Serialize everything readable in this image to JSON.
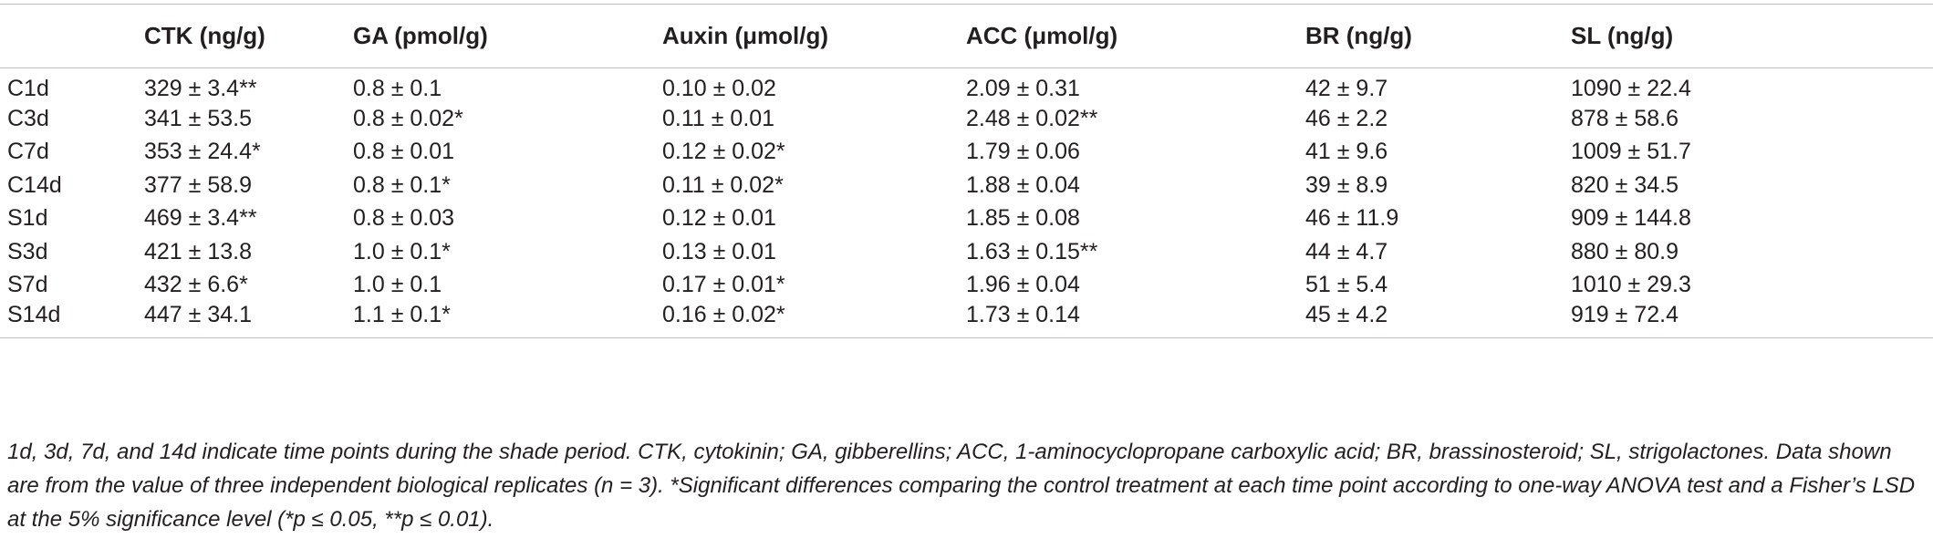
{
  "table": {
    "headers": [
      "",
      "CTK (ng/g)",
      "GA (pmol/g)",
      "Auxin (μmol/g)",
      "ACC (μmol/g)",
      "BR (ng/g)",
      "SL (ng/g)"
    ],
    "rows": [
      [
        "C1d",
        "329 ± 3.4**",
        "0.8 ± 0.1",
        "0.10 ± 0.02",
        "2.09 ± 0.31",
        "42 ± 9.7",
        "1090 ± 22.4"
      ],
      [
        "C3d",
        "341 ± 53.5",
        "0.8 ± 0.02*",
        "0.11 ± 0.01",
        "2.48 ± 0.02**",
        "46 ± 2.2",
        "878 ± 58.6"
      ],
      [
        "C7d",
        "353 ± 24.4*",
        "0.8 ± 0.01",
        "0.12 ± 0.02*",
        "1.79 ± 0.06",
        "41 ± 9.6",
        "1009 ± 51.7"
      ],
      [
        "C14d",
        "377 ± 58.9",
        "0.8 ± 0.1*",
        "0.11 ± 0.02*",
        "1.88 ± 0.04",
        "39 ± 8.9",
        "820 ± 34.5"
      ],
      [
        "S1d",
        "469 ± 3.4**",
        "0.8 ± 0.03",
        "0.12 ± 0.01",
        "1.85 ± 0.08",
        "46 ± 11.9",
        "909 ± 144.8"
      ],
      [
        "S3d",
        "421 ± 13.8",
        "1.0 ± 0.1*",
        "0.13 ± 0.01",
        "1.63 ± 0.15**",
        "44 ± 4.7",
        "880 ± 80.9"
      ],
      [
        "S7d",
        "432 ± 6.6*",
        "1.0 ± 0.1",
        "0.17 ± 0.01*",
        "1.96 ± 0.04",
        "51 ± 5.4",
        "1010 ± 29.3"
      ],
      [
        "S14d",
        "447 ± 34.1",
        "1.1 ± 0.1*",
        "0.16 ± 0.02*",
        "1.73 ± 0.14",
        "45 ± 4.2",
        "919 ± 72.4"
      ]
    ]
  },
  "footnote": "1d, 3d, 7d, and 14d indicate time points during the shade period. CTK, cytokinin; GA, gibberellins; ACC, 1-aminocyclopropane carboxylic acid; BR, brassinosteroid; SL, strigolactones. Data shown are from the value of three independent biological replicates (n = 3). *Significant differences comparing the control treatment at each time point according to one-way ANOVA test and a Fisher’s LSD at the 5% significance level (*p ≤ 0.05, **p ≤ 0.01)."
}
